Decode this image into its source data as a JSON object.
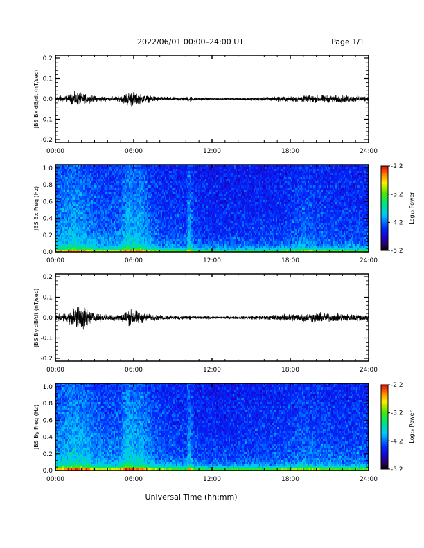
{
  "header": {
    "title": "2022/06/01  00:00–24:00 UT",
    "page": "Page 1/1"
  },
  "xaxis": {
    "label": "Universal Time (hh:mm)",
    "ticks": [
      "00:00",
      "06:00",
      "12:00",
      "18:00",
      "24:00"
    ]
  },
  "chart_data": [
    {
      "type": "line",
      "ylabel": "JBS Bx dB/dt (nT/sec)",
      "xlim": [
        0,
        24
      ],
      "ylim": [
        -0.2,
        0.2
      ],
      "yticks": [
        "0.2",
        "0.1",
        "0.0",
        "-0.1",
        "-0.2"
      ],
      "envelope": {
        "hours": [
          0,
          1,
          1.5,
          2,
          2.5,
          3,
          4,
          5,
          5.5,
          6,
          6.5,
          7,
          8,
          9,
          10,
          10.3,
          10.5,
          11,
          12,
          14,
          16,
          18,
          20,
          22,
          24
        ],
        "amplitude": [
          0.015,
          0.02,
          0.035,
          0.03,
          0.02,
          0.015,
          0.012,
          0.015,
          0.035,
          0.04,
          0.025,
          0.02,
          0.012,
          0.01,
          0.01,
          0.02,
          0.01,
          0.008,
          0.006,
          0.006,
          0.01,
          0.015,
          0.02,
          0.018,
          0.015
        ]
      }
    },
    {
      "type": "heatmap",
      "ylabel": "JBS Bx Freq (Hz)",
      "xlim": [
        0,
        24
      ],
      "ylim": [
        0,
        1.0
      ],
      "yticks": [
        "1.0",
        "0.8",
        "0.6",
        "0.4",
        "0.2",
        "0.0"
      ],
      "colorbar": {
        "label": "Log₁₀ Power",
        "range": [
          -5.2,
          -2.2
        ],
        "ticks": [
          "-2.2",
          "-3.2",
          "-4.2",
          "-5.2"
        ]
      },
      "activity": {
        "hours": [
          0,
          1,
          1.5,
          2,
          2.5,
          3,
          4,
          5,
          5.5,
          6,
          6.5,
          7,
          8,
          10,
          10.3,
          10.6,
          12,
          16,
          18,
          19,
          20,
          22,
          24
        ],
        "level": [
          0.55,
          0.7,
          0.75,
          0.65,
          0.6,
          0.5,
          0.45,
          0.5,
          0.8,
          0.7,
          0.75,
          0.55,
          0.35,
          0.3,
          0.7,
          0.3,
          0.22,
          0.25,
          0.3,
          0.45,
          0.35,
          0.3,
          0.3
        ]
      }
    },
    {
      "type": "line",
      "ylabel": "JBS By dB/dt (nT/sec)",
      "xlim": [
        0,
        24
      ],
      "ylim": [
        -0.2,
        0.2
      ],
      "yticks": [
        "0.2",
        "0.1",
        "0.0",
        "-0.1",
        "-0.2"
      ],
      "envelope": {
        "hours": [
          0,
          1,
          1.5,
          2,
          2.5,
          3,
          4,
          5,
          5.5,
          6,
          6.5,
          7,
          8,
          9,
          10,
          10.3,
          10.5,
          11,
          12,
          14,
          16,
          18,
          20,
          22,
          24
        ],
        "amplitude": [
          0.015,
          0.025,
          0.06,
          0.075,
          0.04,
          0.02,
          0.015,
          0.02,
          0.04,
          0.045,
          0.03,
          0.02,
          0.012,
          0.01,
          0.01,
          0.02,
          0.01,
          0.008,
          0.007,
          0.007,
          0.012,
          0.02,
          0.025,
          0.02,
          0.018
        ]
      }
    },
    {
      "type": "heatmap",
      "ylabel": "JBS By Freq (Hz)",
      "xlim": [
        0,
        24
      ],
      "ylim": [
        0,
        1.0
      ],
      "yticks": [
        "1.0",
        "0.8",
        "0.6",
        "0.4",
        "0.2",
        "0.0"
      ],
      "colorbar": {
        "label": "Log₁₀ Power",
        "range": [
          -5.2,
          -2.2
        ],
        "ticks": [
          "-2.2",
          "-3.2",
          "-4.2",
          "-5.2"
        ]
      },
      "activity": {
        "hours": [
          0,
          1,
          1.5,
          2,
          2.5,
          3,
          4,
          5,
          5.5,
          6,
          6.5,
          7,
          8,
          10,
          10.3,
          10.6,
          12,
          16,
          18,
          19,
          20,
          22,
          24
        ],
        "level": [
          0.6,
          0.75,
          0.8,
          0.75,
          0.7,
          0.55,
          0.5,
          0.55,
          0.85,
          0.75,
          0.75,
          0.6,
          0.4,
          0.3,
          0.7,
          0.3,
          0.25,
          0.3,
          0.35,
          0.45,
          0.4,
          0.35,
          0.35
        ]
      }
    }
  ]
}
